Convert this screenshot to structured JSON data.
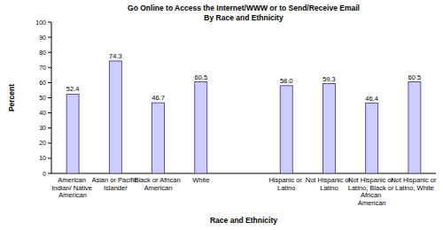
{
  "chart_data": {
    "type": "bar",
    "title": "Go Online to Access the Internet/WWW or to Send/Receive Email",
    "subtitle": "By Race and Ethnicity",
    "x_label": "Race and Ethnicity",
    "y_label": "Percent",
    "categories": [
      "American Indian/ Native American",
      "Asian or Pacific Islander",
      "Black or African American",
      "White",
      null,
      "Hispanic or Latino",
      "Not Hispanic or Latino",
      "Not Hispanic or Latino, Black or African American",
      "Not Hispanic or Latino, White"
    ],
    "values": [
      52.4,
      74.3,
      46.7,
      60.5,
      null,
      58.0,
      59.3,
      46.4,
      60.5
    ],
    "value_labels": [
      "52.4",
      "74.3",
      "46.7",
      "60.5",
      null,
      "58.0",
      "59.3",
      "46.4",
      "60.5"
    ],
    "color": "#ccccff",
    "ylim": [
      0,
      100
    ],
    "yticks": [
      0,
      10,
      20,
      30,
      40,
      50,
      60,
      70,
      80,
      90,
      100
    ],
    "grid": false,
    "data_labels": true
  }
}
